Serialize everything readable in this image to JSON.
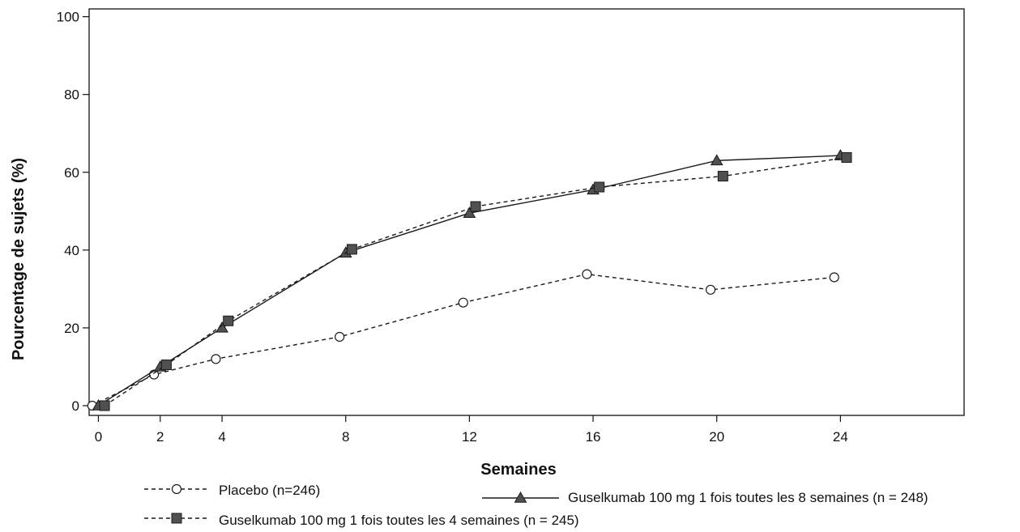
{
  "chart_data": {
    "type": "line",
    "title": "",
    "xlabel": "Semaines",
    "ylabel": "Pourcentage de sujets (%)",
    "xlim": [
      -0.3,
      28
    ],
    "ylim": [
      -2.5,
      102
    ],
    "xticks": [
      0,
      2,
      4,
      8,
      12,
      16,
      20,
      24
    ],
    "xtick_labels": [
      "0",
      "2",
      "4",
      "8",
      "12",
      "16",
      "20",
      "24"
    ],
    "yticks": [
      0,
      20,
      40,
      60,
      80,
      100
    ],
    "ytick_labels": [
      "0",
      "20",
      "40",
      "60",
      "80",
      "100"
    ],
    "grid": false,
    "legend_position": "bottom",
    "series": [
      {
        "name": "Placebo (n=246)",
        "marker": "open-circle",
        "line": "dashed",
        "x": [
          -0.2,
          1.8,
          3.8,
          7.8,
          11.8,
          15.8,
          19.8,
          23.8
        ],
        "y": [
          0,
          8,
          12,
          17.7,
          26.5,
          33.8,
          29.8,
          33
        ]
      },
      {
        "name": "Guselkumab 100 mg 1 fois toutes les 8 semaines (n = 248)",
        "marker": "filled-triangle",
        "line": "solid",
        "x": [
          0,
          2,
          4,
          8,
          12,
          16,
          20,
          24
        ],
        "y": [
          0,
          10,
          20,
          39.3,
          49.5,
          55.5,
          63,
          64.3
        ]
      },
      {
        "name": "Guselkumab 100 mg 1 fois toutes les 4 semaines (n = 245)",
        "marker": "filled-square",
        "line": "dashed",
        "x": [
          0.2,
          2.2,
          4.2,
          8.2,
          12.2,
          16.2,
          20.2,
          24.2
        ],
        "y": [
          0,
          10.5,
          21.8,
          40.2,
          51.2,
          56.2,
          59,
          63.8
        ]
      }
    ],
    "colors": {
      "line": "#1a1a1a",
      "marker_fill": "#505050",
      "axis": "#111111"
    }
  }
}
